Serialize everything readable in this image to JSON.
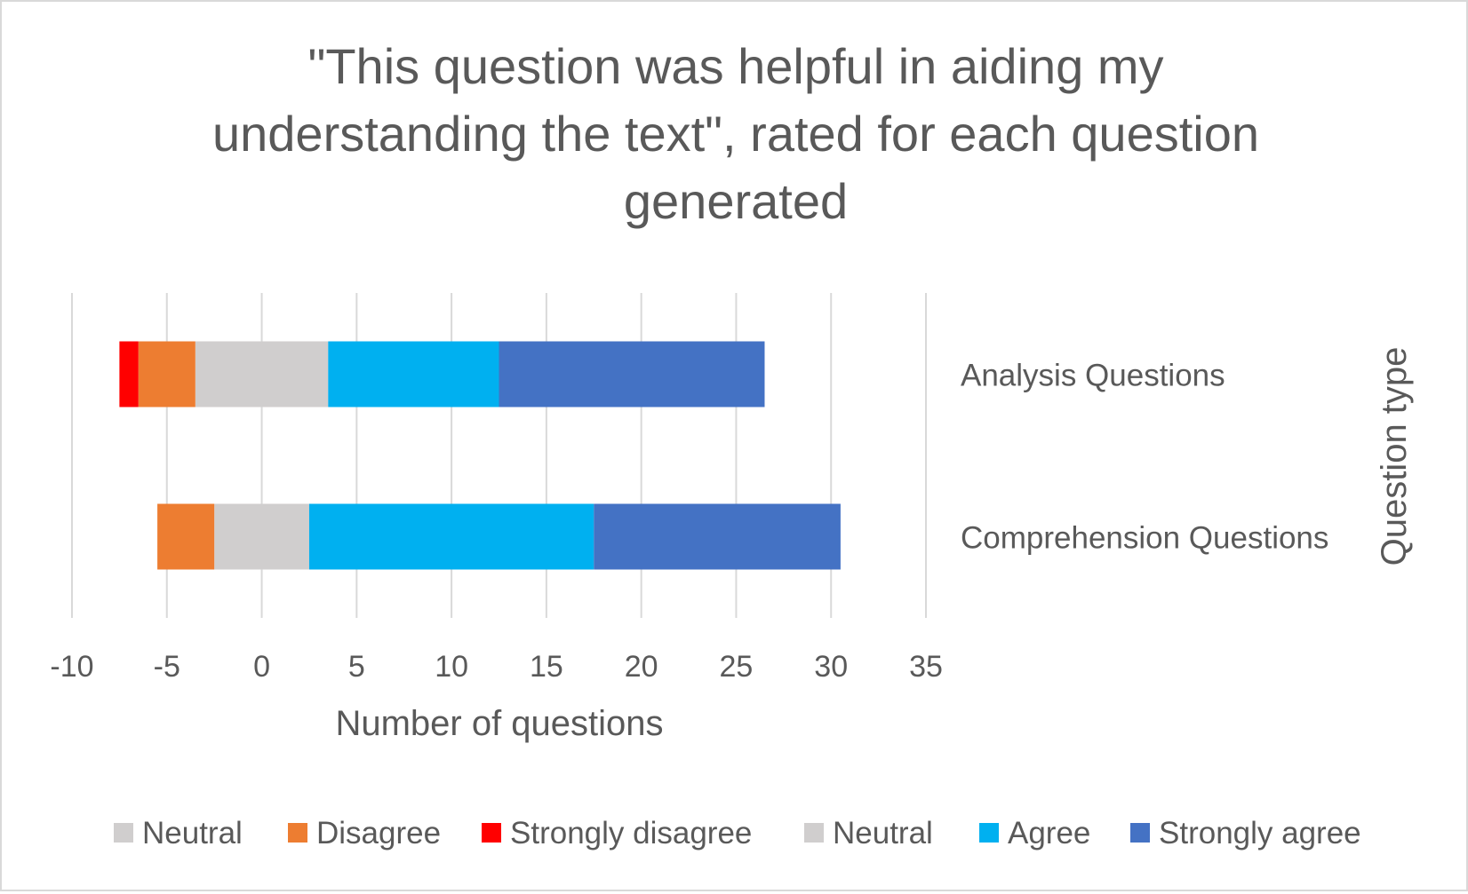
{
  "chart_data": {
    "type": "bar",
    "orientation": "horizontal",
    "stacked": true,
    "title_lines": [
      "\"This question was helpful in aiding my",
      "understanding the text\", rated for each question",
      "generated"
    ],
    "xlabel": "Number of questions",
    "ylabel": "Question type",
    "xlim": [
      -10,
      35
    ],
    "x_ticks": [
      -10,
      -5,
      0,
      5,
      10,
      15,
      20,
      25,
      30,
      35
    ],
    "grid": "vertical",
    "legend_position": "bottom",
    "categories": [
      "Analysis Questions",
      "Comprehension Questions"
    ],
    "series": [
      {
        "name": "Neutral",
        "color": "#d0cece",
        "values": [
          3.5,
          2.5
        ],
        "direction": "negative"
      },
      {
        "name": "Disagree",
        "color": "#ed7d31",
        "values": [
          3,
          3
        ],
        "direction": "negative"
      },
      {
        "name": "Strongly disagree",
        "color": "#ff0000",
        "values": [
          1,
          0
        ],
        "direction": "negative"
      },
      {
        "name": "Neutral",
        "color": "#d0cece",
        "values": [
          3.5,
          2.5
        ],
        "direction": "positive"
      },
      {
        "name": "Agree",
        "color": "#00b0f0",
        "values": [
          9,
          15
        ],
        "direction": "positive"
      },
      {
        "name": "Strongly agree",
        "color": "#4472c4",
        "values": [
          14,
          13
        ],
        "direction": "positive"
      }
    ]
  }
}
